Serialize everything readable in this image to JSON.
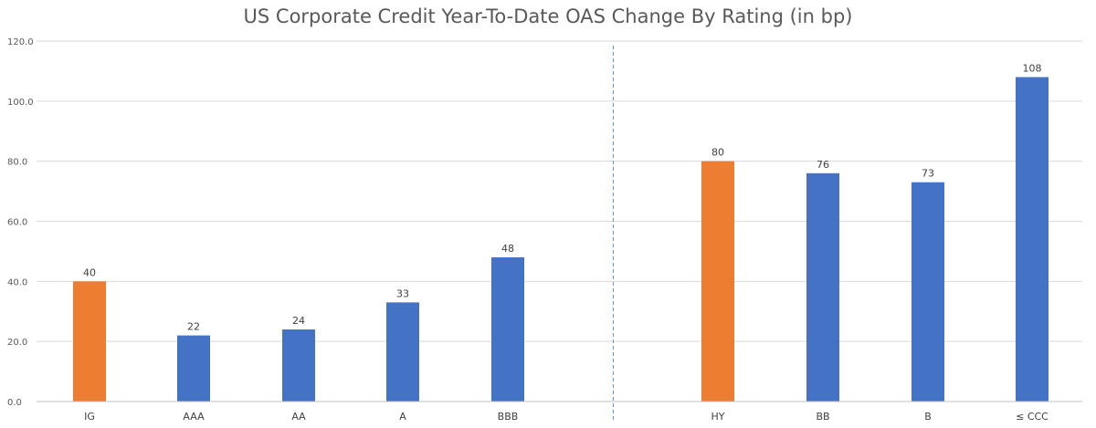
{
  "chart_data": {
    "type": "bar",
    "title": "US Corporate Credit Year-To-Date OAS Change By Rating (in bp)",
    "xlabel": "",
    "ylabel": "",
    "ylim": [
      0,
      120
    ],
    "yticks": [
      "0.0",
      "20.0",
      "40.0",
      "60.0",
      "80.0",
      "100.0",
      "120.0"
    ],
    "grid": true,
    "categories": [
      "IG",
      "AAA",
      "AA",
      "A",
      "BBB",
      "HY",
      "BB",
      "B",
      "≤ CCC"
    ],
    "values": [
      40,
      22,
      24,
      33,
      48,
      80,
      76,
      73,
      108
    ],
    "data_labels": [
      "40",
      "22",
      "24",
      "33",
      "48",
      "80",
      "76",
      "73",
      "108"
    ],
    "bar_colors": [
      "#ED7D31",
      "#4472C4",
      "#4472C4",
      "#4472C4",
      "#4472C4",
      "#ED7D31",
      "#4472C4",
      "#4472C4",
      "#4472C4"
    ],
    "divider": "dashed vertical line between BBB and HY"
  },
  "colors": {
    "highlight": "#ED7D31",
    "bar": "#4472C4",
    "grid": "#D9D9D9",
    "divider": "#5B9BD5"
  }
}
